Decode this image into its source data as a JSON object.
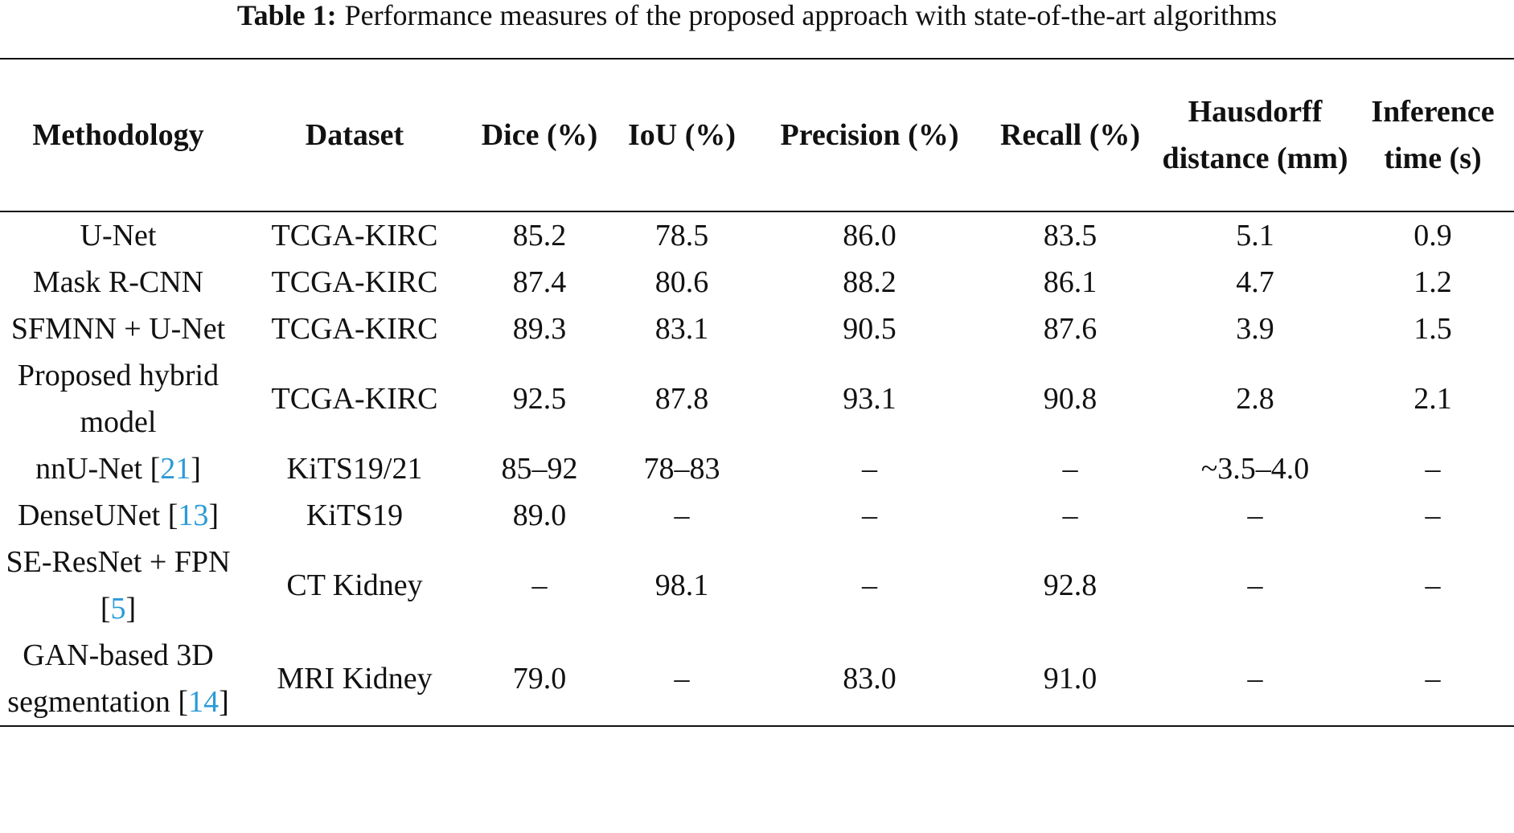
{
  "caption": {
    "label": "Table 1:",
    "text": "Performance measures of the proposed approach with state-of-the-art algorithms"
  },
  "table": {
    "headers": [
      "Methodology",
      "Dataset",
      "Dice (%)",
      "IoU (%)",
      "Precision (%)",
      "Recall (%)",
      "Hausdorff distance (mm)",
      "Inference time (s)"
    ],
    "rows": [
      [
        [
          "U-Net"
        ],
        "TCGA-KIRC",
        "85.2",
        "78.5",
        "86.0",
        "83.5",
        "5.1",
        "0.9"
      ],
      [
        [
          "Mask R-CNN"
        ],
        "TCGA-KIRC",
        "87.4",
        "80.6",
        "88.2",
        "86.1",
        "4.7",
        "1.2"
      ],
      [
        [
          "SFMNN + U-Net"
        ],
        "TCGA-KIRC",
        "89.3",
        "83.1",
        "90.5",
        "87.6",
        "3.9",
        "1.5"
      ],
      [
        [
          "Proposed hybrid model"
        ],
        "TCGA-KIRC",
        "92.5",
        "87.8",
        "93.1",
        "90.8",
        "2.8",
        "2.1"
      ],
      [
        [
          "nnU-Net [",
          "21",
          "]"
        ],
        "KiTS19/21",
        "85–92",
        "78–83",
        "–",
        "–",
        "~3.5–4.0",
        "–"
      ],
      [
        [
          "DenseUNet [",
          "13",
          "]"
        ],
        "KiTS19",
        "89.0",
        "–",
        "–",
        "–",
        "–",
        "–"
      ],
      [
        [
          "SE-ResNet + FPN [",
          "5",
          "]"
        ],
        "CT Kidney",
        "–",
        "98.1",
        "–",
        "92.8",
        "–",
        "–"
      ],
      [
        [
          "GAN-based 3D segmentation [",
          "14",
          "]"
        ],
        "MRI Kidney",
        "79.0",
        "–",
        "83.0",
        "91.0",
        "–",
        "–"
      ]
    ]
  }
}
